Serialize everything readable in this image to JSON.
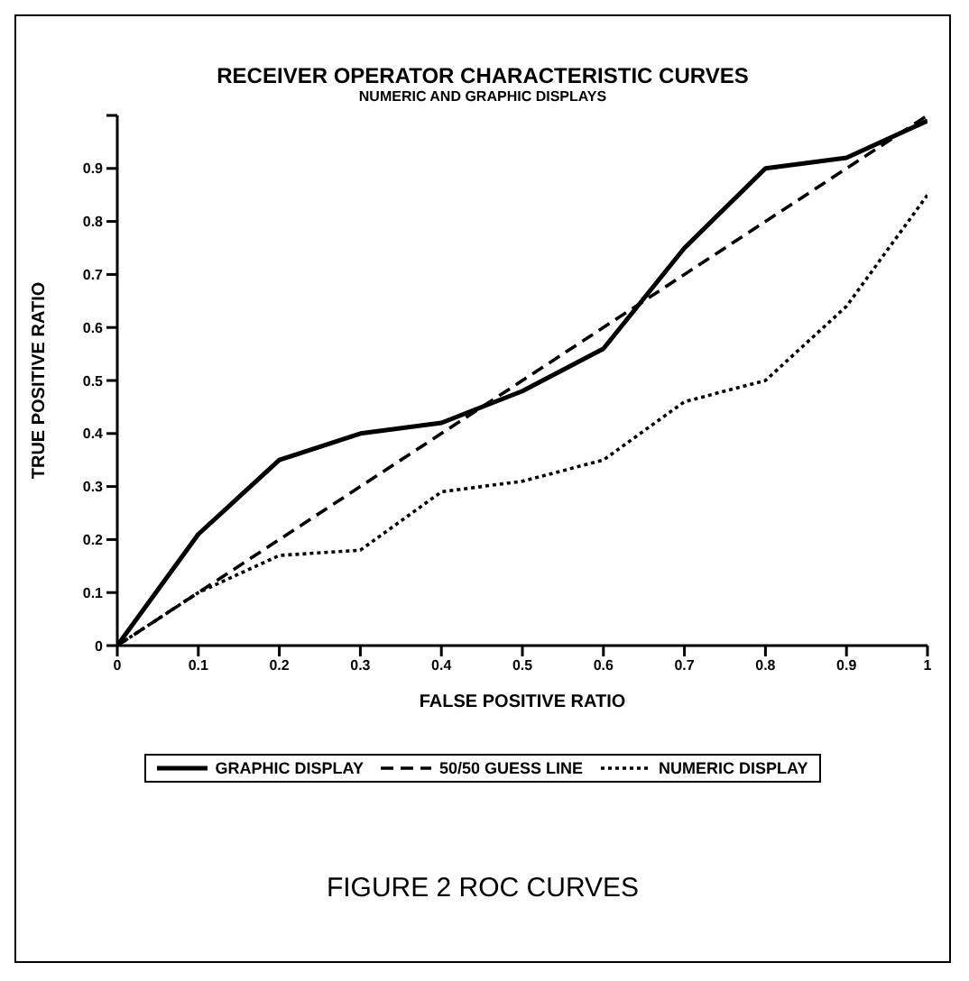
{
  "chart_data": {
    "type": "line",
    "title": "RECEIVER OPERATOR CHARACTERISTIC CURVES",
    "subtitle": "NUMERIC AND GRAPHIC DISPLAYS",
    "xlabel": "FALSE POSITIVE RATIO",
    "ylabel": "TRUE POSITIVE RATIO",
    "annotations": [
      "FIGURE 2 ROC CURVES"
    ],
    "xlim": [
      0,
      1
    ],
    "xticks": [
      0,
      0.1,
      0.2,
      0.3,
      0.4,
      0.5,
      0.6,
      0.7,
      0.8,
      0.9,
      1
    ],
    "ylim": [
      0,
      1
    ],
    "yticks": [
      0,
      0.1,
      0.2,
      0.3,
      0.4,
      0.5,
      0.6,
      0.7,
      0.8,
      0.9,
      {
        "value": 1,
        "label": null
      }
    ],
    "grid": false,
    "legend": "bottom",
    "marker": "none",
    "series": [
      {
        "name": "GRAPHIC DISPLAY",
        "color": "#000000",
        "line_style": "solid",
        "x": [
          0,
          0.1,
          0.2,
          0.3,
          0.4,
          0.5,
          0.6,
          0.7,
          0.8,
          0.9,
          1
        ],
        "values": [
          0,
          0.21,
          0.35,
          0.4,
          0.42,
          0.48,
          0.56,
          0.75,
          0.9,
          0.92,
          0.99
        ]
      },
      {
        "name": "50/50 GUESS LINE",
        "color": "#000000",
        "line_style": "dashed",
        "x": [
          0,
          1
        ],
        "values": [
          0,
          1
        ]
      },
      {
        "name": "NUMERIC DISPLAY",
        "color": "#000000",
        "line_style": "dotted",
        "x": [
          0,
          0.1,
          0.2,
          0.3,
          0.4,
          0.5,
          0.6,
          0.7,
          0.8,
          0.9,
          1
        ],
        "values": [
          0,
          0.1,
          0.17,
          0.18,
          0.29,
          0.31,
          0.35,
          0.46,
          0.5,
          0.64,
          0.85
        ]
      }
    ]
  }
}
